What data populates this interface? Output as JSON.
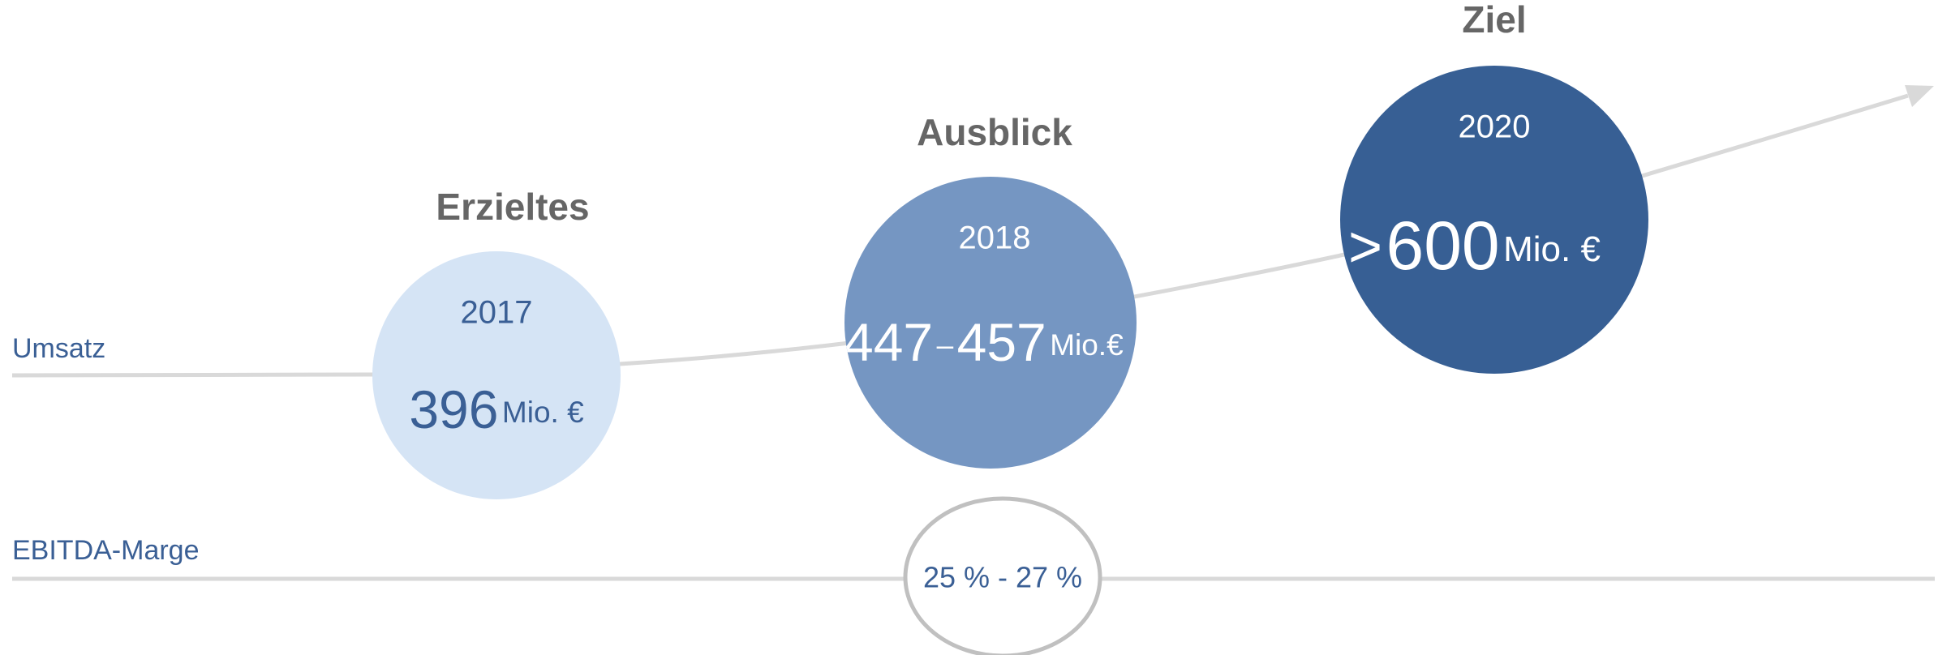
{
  "rows": {
    "revenue": "Umsatz",
    "ebitda": "EBITDA-Marge"
  },
  "stages": [
    {
      "heading": "Erzieltes",
      "year": "2017",
      "value": "396",
      "unit": "Mio. €"
    },
    {
      "heading": "Ausblick",
      "year": "2018",
      "value_from": "447",
      "dash": "–",
      "value_to": "457",
      "unit": "Mio.€"
    },
    {
      "heading": "Ziel",
      "year": "2020",
      "prefix": ">",
      "value": "600",
      "unit": "Mio. €"
    }
  ],
  "ebitda_range": "25 % - 27 %"
}
